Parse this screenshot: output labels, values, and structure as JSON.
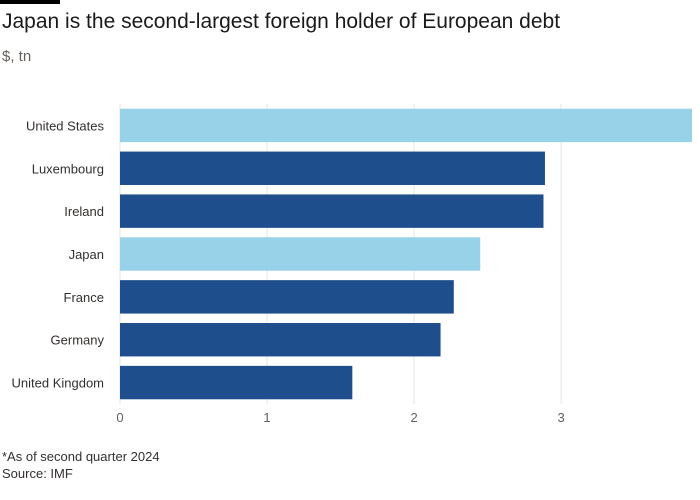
{
  "chart_data": {
    "type": "bar",
    "orientation": "horizontal",
    "title": "Japan is the second-largest foreign holder of European debt",
    "subtitle": "$, tn",
    "categories": [
      "United States",
      "Luxembourg",
      "Ireland",
      "Japan",
      "France",
      "Germany",
      "United Kingdom"
    ],
    "values": [
      3.89,
      2.89,
      2.88,
      2.45,
      2.27,
      2.18,
      1.58
    ],
    "highlight": [
      true,
      false,
      false,
      true,
      false,
      false,
      false
    ],
    "xlim": [
      0,
      3.89
    ],
    "xticks": [
      0,
      1,
      2,
      3
    ],
    "grid": true,
    "colors": {
      "highlight": "#97d2e8",
      "base": "#1f4e8c",
      "grid": "#e6e4e2",
      "axis": "#66605c"
    }
  },
  "footnote": "*As of second quarter 2024",
  "source": "Source: IMF"
}
